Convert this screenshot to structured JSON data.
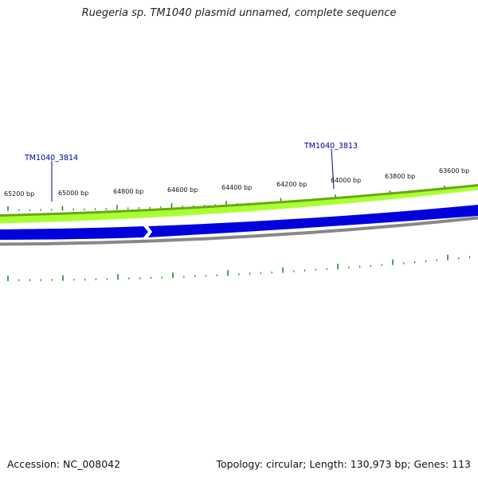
{
  "title": "Ruegeria sp. TM1040 plasmid unnamed, complete sequence",
  "map": {
    "colors": {
      "outer_band": "#aaff33",
      "outer_band_edge": "#66aa11",
      "gene_band": "#0000dd",
      "inner_ring": "#888888",
      "ticks": "#2a8a2a",
      "gene_label": "#000099"
    },
    "tick_labels": [
      "65200 bp",
      "65000 bp",
      "64800 bp",
      "64600 bp",
      "64400 bp",
      "64200 bp",
      "64000 bp",
      "63800 bp",
      "63600 bp"
    ],
    "genes": [
      "TM1040_3814",
      "TM1040_3813"
    ]
  },
  "footer": {
    "accession": "Accession: NC_008042",
    "summary": "Topology: circular; Length: 130,973 bp; Genes: 113"
  }
}
